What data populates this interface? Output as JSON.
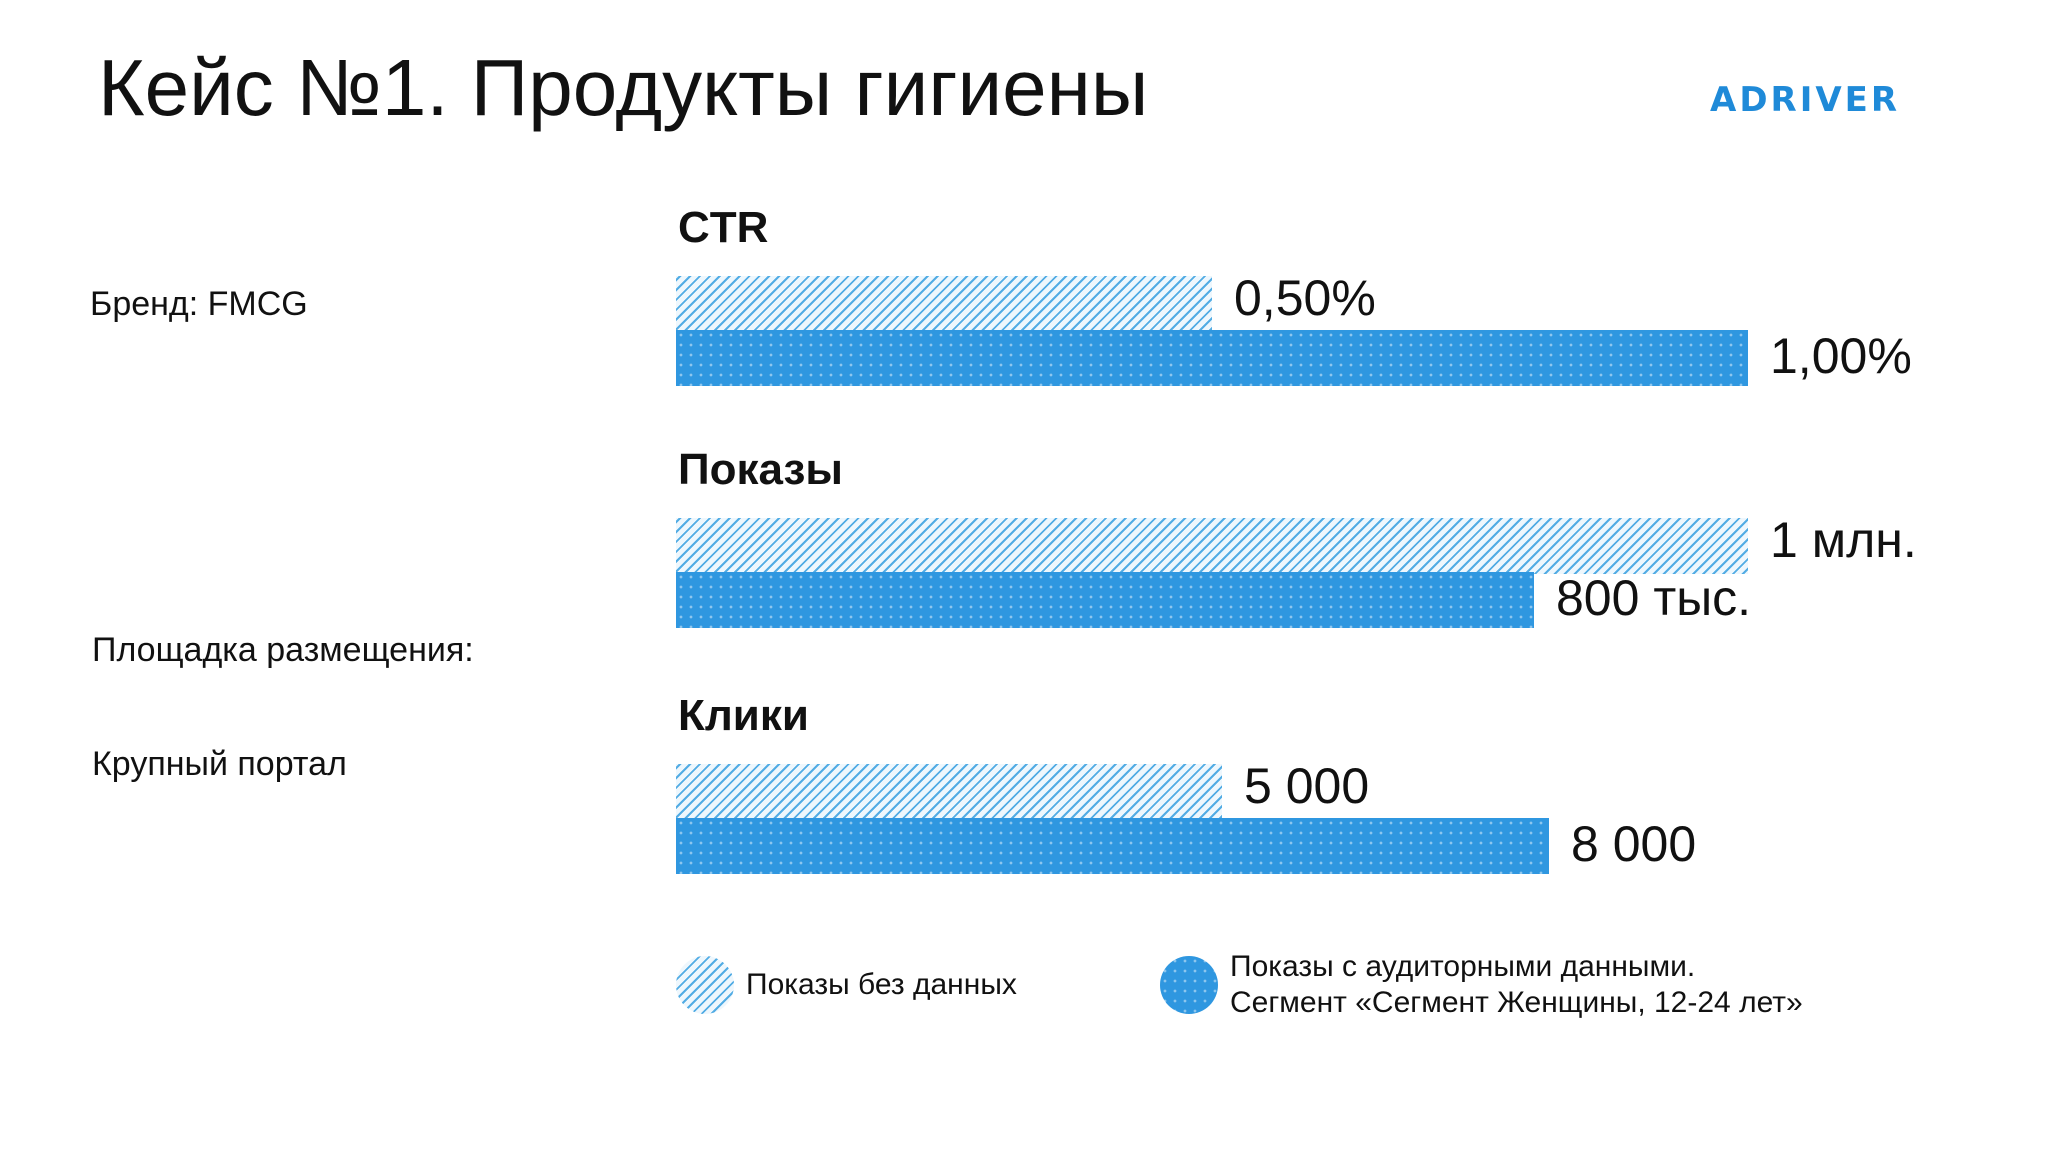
{
  "slide": {
    "title": "Кейс №1. Продукты гигиены",
    "logo_text": "ADRIVER",
    "brand": "Бренд:  FMCG",
    "placement_label": "Площадка размещения:",
    "placement_value": "Крупный портал"
  },
  "colors": {
    "accent": "#2f97e0",
    "logo": "#1f8ad8",
    "hatch": "#52ace4"
  },
  "chart_data": {
    "type": "bar",
    "orientation": "horizontal",
    "series": [
      {
        "name": "Показы без данных",
        "pattern": "hatched"
      },
      {
        "name": "Показы с аудиторными данными.\nСегмент «Сегмент Женщины, 12-24 лет»",
        "pattern": "solid"
      }
    ],
    "groups": [
      {
        "title": "CTR",
        "values": [
          0.5,
          1.0
        ],
        "labels": [
          "0,50%",
          "1,00%"
        ],
        "max": 1.0
      },
      {
        "title": "Показы",
        "values": [
          1000000,
          800000
        ],
        "labels": [
          "1 млн.",
          "800 тыс."
        ],
        "max": 1000000
      },
      {
        "title": "Клики",
        "values": [
          5000,
          8000
        ],
        "labels": [
          "5 000",
          "8 000"
        ],
        "max": 9820
      }
    ],
    "legend": {
      "position": "bottom",
      "items": [
        "Показы без данных",
        "Показы с аудиторными данными.",
        "Сегмент «Сегмент Женщины, 12-24 лет»"
      ]
    }
  }
}
